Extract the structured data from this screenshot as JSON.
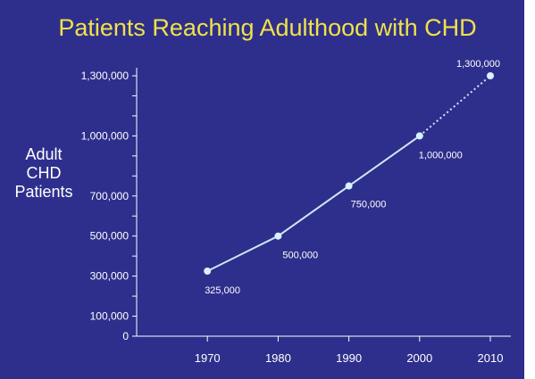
{
  "colors": {
    "background": "#2e2f8c",
    "title": "#f0e24a",
    "text": "#ffffff",
    "line": "#cfe8f5",
    "point": "#d8f0ff"
  },
  "chart_data": {
    "type": "line",
    "title": "Patients Reaching Adulthood with CHD",
    "ylabel": [
      "Adult",
      "CHD",
      "Patients"
    ],
    "xlabel": "",
    "x": [
      1970,
      1980,
      1990,
      2000,
      2010
    ],
    "x_tick_labels": [
      "1970",
      "1980",
      "1990",
      "2000",
      "2010"
    ],
    "xlim": [
      1960,
      2010
    ],
    "ylim": [
      0,
      1300000
    ],
    "y_tick_values": [
      0,
      100000,
      200000,
      300000,
      400000,
      500000,
      600000,
      700000,
      800000,
      900000,
      1000000,
      1100000,
      1200000,
      1300000
    ],
    "y_tick_labels": [
      {
        "value": 0,
        "label": "0"
      },
      {
        "value": 100000,
        "label": "100,000"
      },
      {
        "value": 300000,
        "label": "300,000"
      },
      {
        "value": 500000,
        "label": "500,000"
      },
      {
        "value": 700000,
        "label": "700,000"
      },
      {
        "value": 1000000,
        "label": "1,000,000"
      },
      {
        "value": 1300000,
        "label": "1,300,000"
      }
    ],
    "series": [
      {
        "values": [
          325000,
          500000,
          750000,
          1000000,
          1300000
        ],
        "data_labels": [
          "325,000",
          "500,000",
          "750,000",
          "1,000,000",
          "1,300,000"
        ],
        "line_style": [
          "solid",
          "solid",
          "solid",
          "dotted"
        ]
      }
    ],
    "grid": false,
    "legend": "none"
  }
}
